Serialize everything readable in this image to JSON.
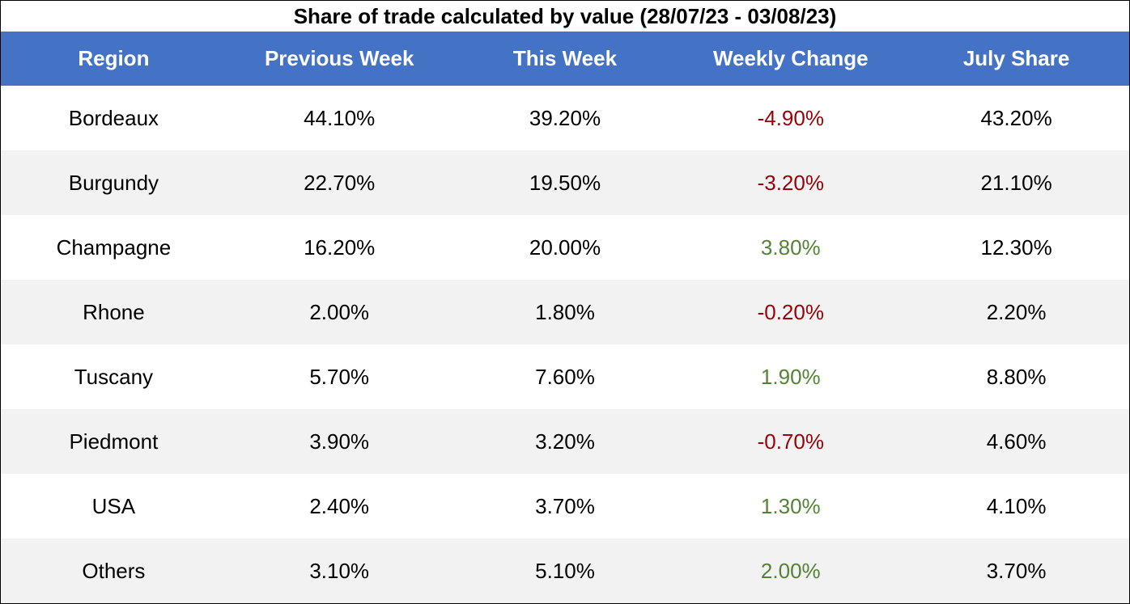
{
  "title": "Share of trade calculated by value (28/07/23 - 03/08/23)",
  "colors": {
    "header_bg": "#4472c4",
    "header_text": "#ffffff",
    "stripe_bg": "#f2f2f2",
    "negative": "#9c0006",
    "positive": "#548235"
  },
  "columns": [
    "Region",
    "Previous Week",
    "This Week",
    "Weekly Change",
    "July Share"
  ],
  "rows": [
    {
      "region": "Bordeaux",
      "previous_week": "44.10%",
      "this_week": "39.20%",
      "weekly_change": "-4.90%",
      "change_sign": "neg",
      "july_share": "43.20%"
    },
    {
      "region": "Burgundy",
      "previous_week": "22.70%",
      "this_week": "19.50%",
      "weekly_change": "-3.20%",
      "change_sign": "neg",
      "july_share": "21.10%"
    },
    {
      "region": "Champagne",
      "previous_week": "16.20%",
      "this_week": "20.00%",
      "weekly_change": "3.80%",
      "change_sign": "pos",
      "july_share": "12.30%"
    },
    {
      "region": "Rhone",
      "previous_week": "2.00%",
      "this_week": "1.80%",
      "weekly_change": "-0.20%",
      "change_sign": "neg",
      "july_share": "2.20%"
    },
    {
      "region": "Tuscany",
      "previous_week": "5.70%",
      "this_week": "7.60%",
      "weekly_change": "1.90%",
      "change_sign": "pos",
      "july_share": "8.80%"
    },
    {
      "region": "Piedmont",
      "previous_week": "3.90%",
      "this_week": "3.20%",
      "weekly_change": "-0.70%",
      "change_sign": "neg",
      "july_share": "4.60%"
    },
    {
      "region": "USA",
      "previous_week": "2.40%",
      "this_week": "3.70%",
      "weekly_change": "1.30%",
      "change_sign": "pos",
      "july_share": "4.10%"
    },
    {
      "region": "Others",
      "previous_week": "3.10%",
      "this_week": "5.10%",
      "weekly_change": "2.00%",
      "change_sign": "pos",
      "july_share": "3.70%"
    }
  ]
}
